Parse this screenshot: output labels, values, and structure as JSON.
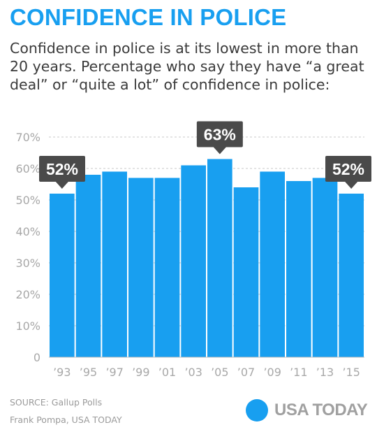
{
  "header": {
    "title": "CONFIDENCE IN POLICE",
    "subtitle": "Confidence in police is at its lowest in more than 20 years. Percentage who say they have “a great deal” or “quite a lot” of confidence in police:"
  },
  "chart_data": {
    "type": "bar",
    "categories": [
      "’93",
      "’95",
      "’97",
      "’99",
      "’01",
      "’03",
      "’05",
      "’07",
      "’09",
      "’11",
      "’13",
      "’15"
    ],
    "values": [
      52,
      58,
      59,
      57,
      57,
      61,
      63,
      54,
      59,
      56,
      57,
      52
    ],
    "ylim": [
      0,
      70
    ],
    "yticks": [
      "0",
      "10%",
      "20%",
      "30%",
      "40%",
      "50%",
      "60%",
      "70%"
    ],
    "grid": true,
    "callouts": [
      {
        "index": 0,
        "label": "52%"
      },
      {
        "index": 6,
        "label": "63%"
      },
      {
        "index": 11,
        "label": "52%"
      }
    ],
    "bar_color": "#189ff0",
    "callout_color": "#4a4a4a"
  },
  "footer": {
    "source": "SOURCE:  Gallup Polls",
    "credit": "Frank Pompa, USA TODAY",
    "logo_text": "USA TODAY"
  },
  "colors": {
    "accent": "#189ff0",
    "text": "#3a3a3a",
    "muted": "#9a9a9a"
  }
}
